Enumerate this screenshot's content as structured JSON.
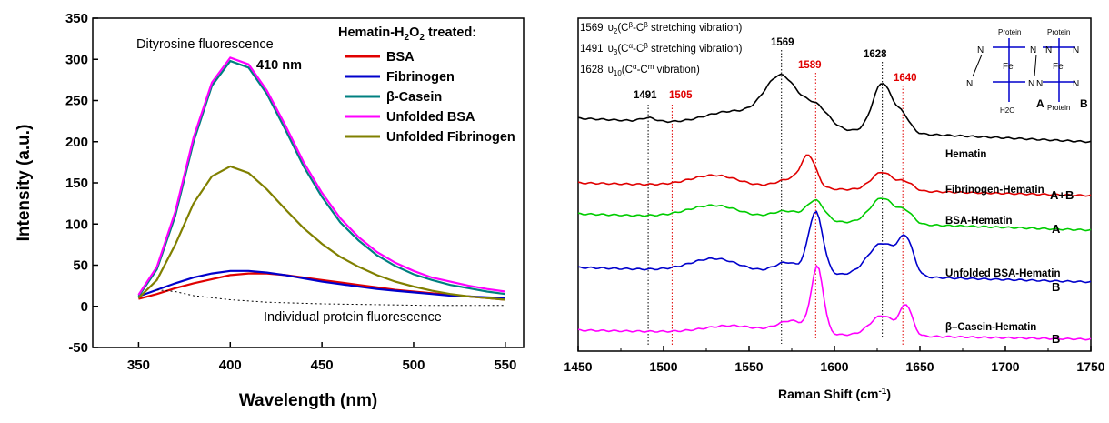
{
  "chart_data": [
    {
      "type": "line",
      "xlabel": "Wavelength (nm)",
      "ylabel": "Intensity (a.u.)",
      "xlim": [
        325,
        560
      ],
      "ylim": [
        -50,
        350
      ],
      "xticks": [
        "350",
        "400",
        "450",
        "500",
        "550"
      ],
      "yticks": [
        "-50",
        "0",
        "50",
        "100",
        "150",
        "200",
        "250",
        "300",
        "350"
      ],
      "legend_title": "Hematin-H2O2 treated:",
      "annotations": {
        "dityrosine": "Dityrosine fluorescence",
        "peak": "410 nm",
        "individual": "Individual protein fluorescence"
      },
      "series": [
        {
          "name": "BSA",
          "color": "#e00000",
          "x": [
            350,
            360,
            370,
            380,
            390,
            400,
            410,
            420,
            430,
            440,
            450,
            460,
            470,
            480,
            490,
            500,
            510,
            520,
            530,
            540,
            550
          ],
          "y": [
            9,
            15,
            22,
            28,
            33,
            38,
            40,
            40,
            38,
            35,
            32,
            29,
            26,
            23,
            20,
            18,
            16,
            14,
            12,
            10,
            8
          ]
        },
        {
          "name": "Fibrinogen",
          "color": "#0000cc",
          "x": [
            350,
            360,
            370,
            380,
            390,
            400,
            410,
            420,
            430,
            440,
            450,
            460,
            470,
            480,
            490,
            500,
            510,
            520,
            530,
            540,
            550
          ],
          "y": [
            12,
            20,
            28,
            35,
            40,
            43,
            43,
            41,
            38,
            34,
            30,
            27,
            24,
            21,
            19,
            17,
            15,
            13,
            12,
            11,
            10
          ]
        },
        {
          "name": "β-Casein",
          "color": "#008080",
          "x": [
            350,
            360,
            370,
            380,
            390,
            400,
            410,
            420,
            430,
            440,
            450,
            460,
            470,
            480,
            490,
            500,
            510,
            520,
            530,
            540,
            550
          ],
          "y": [
            12,
            45,
            110,
            200,
            268,
            298,
            290,
            258,
            215,
            170,
            133,
            102,
            80,
            62,
            49,
            39,
            32,
            26,
            22,
            18,
            15
          ]
        },
        {
          "name": "Unfolded BSA",
          "color": "#ff00ff",
          "x": [
            350,
            360,
            370,
            380,
            390,
            400,
            410,
            420,
            430,
            440,
            450,
            460,
            470,
            480,
            490,
            500,
            510,
            520,
            530,
            540,
            550
          ],
          "y": [
            14,
            48,
            115,
            205,
            272,
            302,
            294,
            262,
            220,
            175,
            138,
            107,
            84,
            66,
            53,
            43,
            35,
            30,
            25,
            21,
            18
          ]
        },
        {
          "name": "Unfolded Fibrinogen",
          "color": "#808000",
          "x": [
            350,
            360,
            370,
            380,
            390,
            400,
            410,
            420,
            430,
            440,
            450,
            460,
            470,
            480,
            490,
            500,
            510,
            520,
            530,
            540,
            550
          ],
          "y": [
            10,
            32,
            75,
            125,
            158,
            170,
            162,
            142,
            118,
            95,
            76,
            60,
            48,
            38,
            30,
            24,
            19,
            15,
            12,
            10,
            8
          ]
        },
        {
          "name": "Individual protein fluorescence",
          "color": "#000000",
          "dashed": true,
          "x": [
            360,
            370,
            380,
            400,
            420,
            450,
            480,
            510,
            540,
            550
          ],
          "y": [
            20,
            18,
            13,
            8,
            5,
            3,
            2,
            1,
            1,
            1
          ]
        }
      ]
    },
    {
      "type": "line",
      "xlabel": "Raman Shift (cm",
      "xlabel_sup": "-1",
      "xlabel_end": ")",
      "xlim": [
        1450,
        1750
      ],
      "xticks": [
        "1450",
        "1500",
        "1550",
        "1600",
        "1650",
        "1700",
        "1750"
      ],
      "legend_lines": [
        "1569  υ2(Cβ-Cβ stretching vibration)",
        "1491  υ3(Cα-Cβ stretching vibration)",
        "1628  υ10(Cα-Cm vibration)"
      ],
      "peaks_black": [
        "1491",
        "1569",
        "1628"
      ],
      "peaks_red": [
        "1505",
        "1589",
        "1640"
      ],
      "structure": {
        "protein": "Protein",
        "fe": "Fe",
        "n": "N",
        "h2o": "H2O",
        "A": "A",
        "B": "B"
      },
      "series": [
        {
          "name": "Hematin",
          "tag": "",
          "color": "#000000"
        },
        {
          "name": "Fibrinogen-Hematin",
          "tag": "A+B",
          "color": "#e00000"
        },
        {
          "name": "BSA-Hematin",
          "tag": "A",
          "color": "#00cc00"
        },
        {
          "name": "Unfolded BSA-Hematin",
          "tag": "B",
          "color": "#0000cc"
        },
        {
          "name": "β–Casein-Hematin",
          "tag": "B",
          "color": "#ff00ff"
        }
      ]
    }
  ]
}
